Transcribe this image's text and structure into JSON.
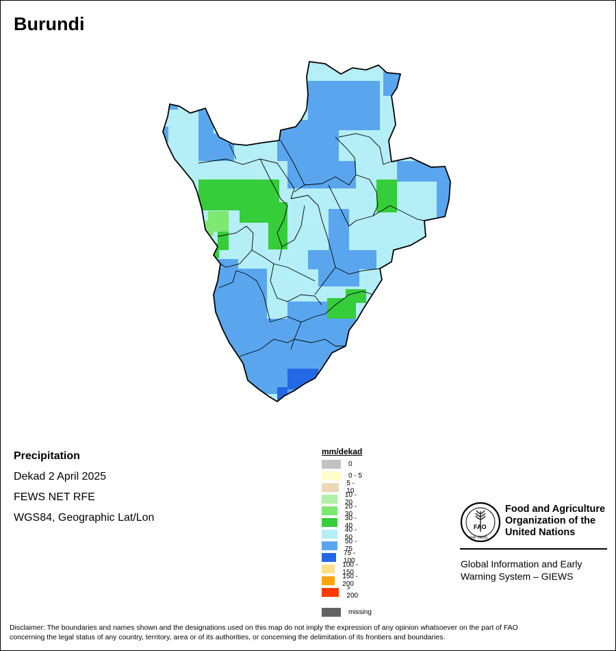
{
  "map_title": "Burundi",
  "info": {
    "variable": "Precipitation",
    "period": "Dekad 2 April 2025",
    "source": "FEWS NET RFE",
    "projection": "WGS84, Geographic Lat/Lon"
  },
  "legend": {
    "unit": "mm/dekad",
    "entries": [
      {
        "label": "0",
        "color": "#c2c2c2"
      },
      {
        "label": "0 - 5",
        "color": "#ffffcc"
      },
      {
        "label": "5 - 10",
        "color": "#ecd8b8"
      },
      {
        "label": "10 - 20",
        "color": "#b0f0a8"
      },
      {
        "label": "20 - 30",
        "color": "#7ee870"
      },
      {
        "label": "30 - 40",
        "color": "#36cd3a"
      },
      {
        "label": "40 - 50",
        "color": "#b4eef6"
      },
      {
        "label": "50 - 75",
        "color": "#5aa6ee"
      },
      {
        "label": "75 - 100",
        "color": "#2468e6"
      },
      {
        "label": "100 - 150",
        "color": "#ffe088"
      },
      {
        "label": "150 - 200",
        "color": "#ffa40e"
      },
      {
        "label": "> 200",
        "color": "#ff3a00"
      }
    ],
    "missing": {
      "label": "missing",
      "color": "#636363"
    }
  },
  "logo": {
    "org_line1": "Food and Agriculture",
    "org_line2": "Organization of the",
    "org_line3": "United Nations",
    "emblem_text": "FIAT PANIS",
    "emblem_letters": "FAO"
  },
  "giews": {
    "line1": "Global Information and Early",
    "line2": "Warning System – GIEWS"
  },
  "disclaimer": {
    "line1": "Disclaimer: The boundaries and names shown and the designations used on this map do not imply the expression of any opinion whatsoever on the part of FAO",
    "line2": "concerning the legal status of any country, territory, area or of its authorities, or concerning the delimitation of its frontiers and boundaries."
  }
}
